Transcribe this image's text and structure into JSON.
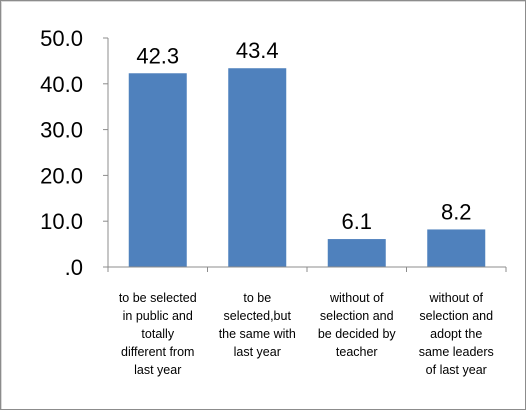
{
  "chart_data": {
    "type": "bar",
    "categories": [
      [
        "to be selected",
        "in public and",
        "totally",
        "different from",
        "last year"
      ],
      [
        "to be",
        "selected,but",
        "the same with",
        "last year"
      ],
      [
        "without of",
        "selection and",
        "be decided by",
        "teacher"
      ],
      [
        "without of",
        "selection and",
        "adopt the",
        "same leaders",
        "of last year"
      ]
    ],
    "values": [
      42.3,
      43.4,
      6.1,
      8.2
    ],
    "data_labels": [
      "42.3",
      "43.4",
      "6.1",
      "8.2"
    ],
    "yticks": [
      ".0",
      "10.0",
      "20.0",
      "30.0",
      "40.0",
      "50.0"
    ],
    "ylim": [
      0,
      50
    ],
    "bar_color": "#4f81bd",
    "grid": false,
    "legend": "none"
  }
}
